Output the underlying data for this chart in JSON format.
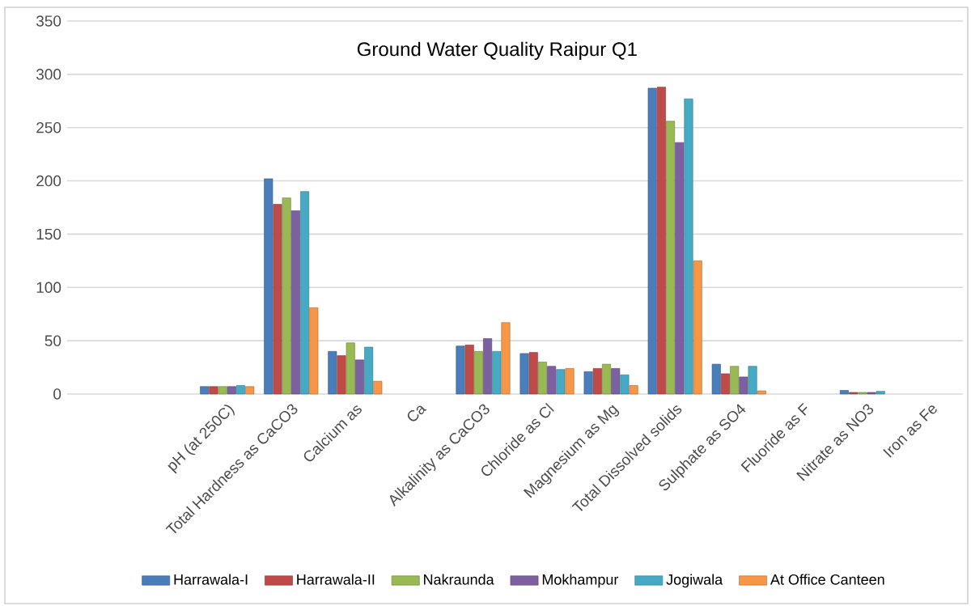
{
  "chart_data": {
    "type": "bar",
    "title": "Ground Water Quality Raipur Q1",
    "categories": [
      null,
      null,
      "pH (at 250C)",
      "Total Hardness as CaCO3",
      "Calcium as",
      "Ca",
      "Alkalinity as CaCO3",
      "Chloride as Cl",
      "Magnesium as Mg",
      "Total Dissolved solids",
      "Sulphate as SO4",
      "Fluoride as F",
      "Nitrate as NO3",
      "Iron as Fe"
    ],
    "series": [
      {
        "name": "Harrawala-I",
        "color": "#4a7ebb",
        "values": [
          null,
          null,
          7,
          202,
          40,
          null,
          45,
          38,
          21,
          287,
          28,
          null,
          3.4,
          null
        ]
      },
      {
        "name": "Harrawala-II",
        "color": "#be4b48",
        "values": [
          null,
          null,
          7,
          178,
          36,
          null,
          46,
          39,
          24,
          288,
          19,
          null,
          1.5,
          null
        ]
      },
      {
        "name": "Nakraunda",
        "color": "#98b954",
        "values": [
          null,
          null,
          7,
          184,
          48,
          null,
          40,
          30,
          28,
          256,
          26,
          null,
          1.5,
          null
        ]
      },
      {
        "name": "Mokhampur",
        "color": "#7d60a0",
        "values": [
          null,
          null,
          7,
          172,
          32,
          null,
          52,
          26,
          24,
          236,
          16,
          null,
          1.5,
          null
        ]
      },
      {
        "name": "Jogiwala",
        "color": "#46aac5",
        "values": [
          null,
          null,
          8,
          190,
          44,
          null,
          40,
          23,
          18,
          277,
          26,
          null,
          2.5,
          null
        ]
      },
      {
        "name": "At Office Canteen",
        "color": "#f79646",
        "values": [
          null,
          null,
          7,
          81,
          12,
          null,
          67,
          24,
          8,
          125,
          3,
          null,
          null,
          null
        ]
      }
    ],
    "ylim": [
      0,
      350
    ],
    "yticks": [
      0,
      50,
      100,
      150,
      200,
      250,
      300,
      350
    ],
    "grid": "y",
    "legend": "bottom"
  }
}
